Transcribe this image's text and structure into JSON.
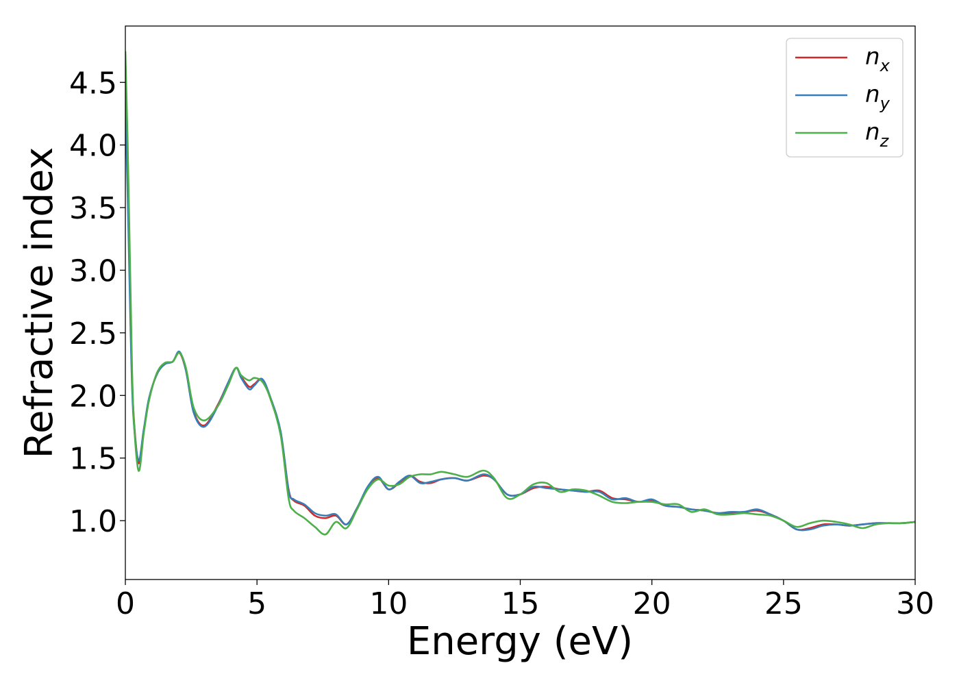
{
  "chart_data": {
    "type": "line",
    "xlabel": "Energy (eV)",
    "ylabel": "Refractive index",
    "xlim": [
      0,
      30
    ],
    "ylim": [
      0.53,
      4.95
    ],
    "xticks": [
      0,
      5,
      10,
      15,
      20,
      25,
      30
    ],
    "xtick_labels": [
      "0",
      "5",
      "10",
      "15",
      "20",
      "25",
      "30"
    ],
    "yticks": [
      1.0,
      1.5,
      2.0,
      2.5,
      3.0,
      3.5,
      4.0,
      4.5
    ],
    "ytick_labels": [
      "1.0",
      "1.5",
      "2.0",
      "2.5",
      "3.0",
      "3.5",
      "4.0",
      "4.5"
    ],
    "grid": false,
    "legend_position": "top-right",
    "series": [
      {
        "name": "n",
        "subscript": "x",
        "color": "#d62728",
        "x": [
          0,
          0.1,
          0.2,
          0.3,
          0.5,
          0.7,
          0.9,
          1.2,
          1.5,
          1.8,
          2.05,
          2.3,
          2.6,
          3.0,
          3.5,
          3.9,
          4.2,
          4.4,
          4.7,
          4.9,
          5.2,
          5.5,
          5.9,
          6.2,
          6.4,
          6.8,
          7.2,
          7.6,
          8.0,
          8.4,
          8.8,
          9.2,
          9.6,
          10.0,
          10.4,
          10.8,
          11.2,
          11.6,
          12.0,
          12.5,
          13.0,
          13.6,
          14.0,
          14.5,
          15.0,
          15.5,
          16.0,
          16.5,
          17.0,
          17.5,
          18.0,
          18.5,
          19.0,
          19.5,
          20.0,
          20.5,
          21.0,
          21.5,
          22.0,
          22.5,
          23.0,
          23.5,
          24.0,
          24.5,
          25.0,
          25.5,
          26.0,
          26.5,
          27.0,
          27.5,
          28.0,
          28.5,
          29.0,
          29.5,
          30.0
        ],
        "y": [
          4.42,
          3.6,
          2.6,
          1.9,
          1.46,
          1.72,
          1.97,
          2.17,
          2.25,
          2.27,
          2.34,
          2.2,
          1.87,
          1.76,
          1.92,
          2.1,
          2.22,
          2.15,
          2.07,
          2.09,
          2.13,
          1.98,
          1.7,
          1.25,
          1.16,
          1.12,
          1.04,
          1.02,
          1.04,
          0.97,
          1.1,
          1.26,
          1.34,
          1.25,
          1.3,
          1.36,
          1.31,
          1.3,
          1.33,
          1.34,
          1.32,
          1.36,
          1.33,
          1.21,
          1.21,
          1.26,
          1.27,
          1.25,
          1.24,
          1.23,
          1.24,
          1.18,
          1.17,
          1.15,
          1.16,
          1.12,
          1.11,
          1.09,
          1.08,
          1.06,
          1.06,
          1.07,
          1.08,
          1.05,
          1.0,
          0.93,
          0.94,
          0.97,
          0.97,
          0.96,
          0.97,
          0.98,
          0.98,
          0.98,
          0.99
        ]
      },
      {
        "name": "n",
        "subscript": "y",
        "color": "#377eb8",
        "x": [
          0,
          0.1,
          0.2,
          0.3,
          0.5,
          0.7,
          0.9,
          1.2,
          1.5,
          1.8,
          2.05,
          2.3,
          2.6,
          3.0,
          3.5,
          3.9,
          4.2,
          4.4,
          4.7,
          4.9,
          5.2,
          5.5,
          5.9,
          6.2,
          6.4,
          6.8,
          7.2,
          7.6,
          8.0,
          8.4,
          8.8,
          9.2,
          9.6,
          10.0,
          10.4,
          10.8,
          11.2,
          11.6,
          12.0,
          12.5,
          13.0,
          13.6,
          14.0,
          14.5,
          15.0,
          15.5,
          16.0,
          16.5,
          17.0,
          17.5,
          18.0,
          18.5,
          19.0,
          19.5,
          20.0,
          20.5,
          21.0,
          21.5,
          22.0,
          22.5,
          23.0,
          23.5,
          24.0,
          24.5,
          25.0,
          25.5,
          26.0,
          26.5,
          27.0,
          27.5,
          28.0,
          28.5,
          29.0,
          29.5,
          30.0
        ],
        "y": [
          4.32,
          3.5,
          2.5,
          1.85,
          1.48,
          1.73,
          1.98,
          2.17,
          2.25,
          2.27,
          2.35,
          2.2,
          1.86,
          1.75,
          1.91,
          2.1,
          2.22,
          2.14,
          2.05,
          2.08,
          2.13,
          1.99,
          1.71,
          1.24,
          1.17,
          1.13,
          1.06,
          1.04,
          1.05,
          0.97,
          1.1,
          1.27,
          1.35,
          1.25,
          1.31,
          1.36,
          1.3,
          1.31,
          1.33,
          1.34,
          1.32,
          1.37,
          1.33,
          1.21,
          1.21,
          1.27,
          1.26,
          1.25,
          1.24,
          1.23,
          1.23,
          1.17,
          1.18,
          1.15,
          1.17,
          1.12,
          1.11,
          1.09,
          1.08,
          1.06,
          1.07,
          1.07,
          1.09,
          1.05,
          1.0,
          0.93,
          0.93,
          0.96,
          0.97,
          0.96,
          0.97,
          0.98,
          0.98,
          0.98,
          0.99
        ]
      },
      {
        "name": "n",
        "subscript": "z",
        "color": "#4daf4a",
        "x": [
          0,
          0.1,
          0.2,
          0.3,
          0.5,
          0.7,
          0.9,
          1.2,
          1.5,
          1.8,
          2.05,
          2.3,
          2.6,
          3.0,
          3.5,
          3.9,
          4.2,
          4.4,
          4.7,
          4.9,
          5.2,
          5.5,
          5.9,
          6.2,
          6.4,
          6.8,
          7.2,
          7.6,
          8.0,
          8.4,
          8.8,
          9.2,
          9.6,
          10.0,
          10.4,
          10.8,
          11.2,
          11.6,
          12.0,
          12.5,
          13.0,
          13.6,
          14.0,
          14.5,
          15.0,
          15.5,
          16.0,
          16.5,
          17.0,
          17.5,
          18.0,
          18.5,
          19.0,
          19.5,
          20.0,
          20.5,
          21.0,
          21.5,
          22.0,
          22.5,
          23.0,
          23.5,
          24.0,
          24.5,
          25.0,
          25.5,
          26.0,
          26.5,
          27.0,
          27.5,
          28.0,
          28.5,
          29.0,
          29.5,
          30.0
        ],
        "y": [
          4.75,
          3.9,
          2.8,
          1.9,
          1.4,
          1.7,
          1.96,
          2.18,
          2.26,
          2.27,
          2.34,
          2.22,
          1.9,
          1.8,
          1.91,
          2.08,
          2.22,
          2.16,
          2.12,
          2.14,
          2.11,
          1.98,
          1.68,
          1.18,
          1.08,
          1.02,
          0.95,
          0.89,
          0.99,
          0.94,
          1.09,
          1.25,
          1.33,
          1.28,
          1.29,
          1.35,
          1.37,
          1.37,
          1.39,
          1.37,
          1.35,
          1.4,
          1.34,
          1.18,
          1.21,
          1.29,
          1.3,
          1.23,
          1.25,
          1.24,
          1.2,
          1.15,
          1.14,
          1.15,
          1.15,
          1.13,
          1.13,
          1.07,
          1.09,
          1.05,
          1.05,
          1.06,
          1.05,
          1.04,
          1.0,
          0.95,
          0.98,
          1.0,
          0.99,
          0.97,
          0.94,
          0.97,
          0.98,
          0.98,
          0.99
        ]
      }
    ]
  }
}
